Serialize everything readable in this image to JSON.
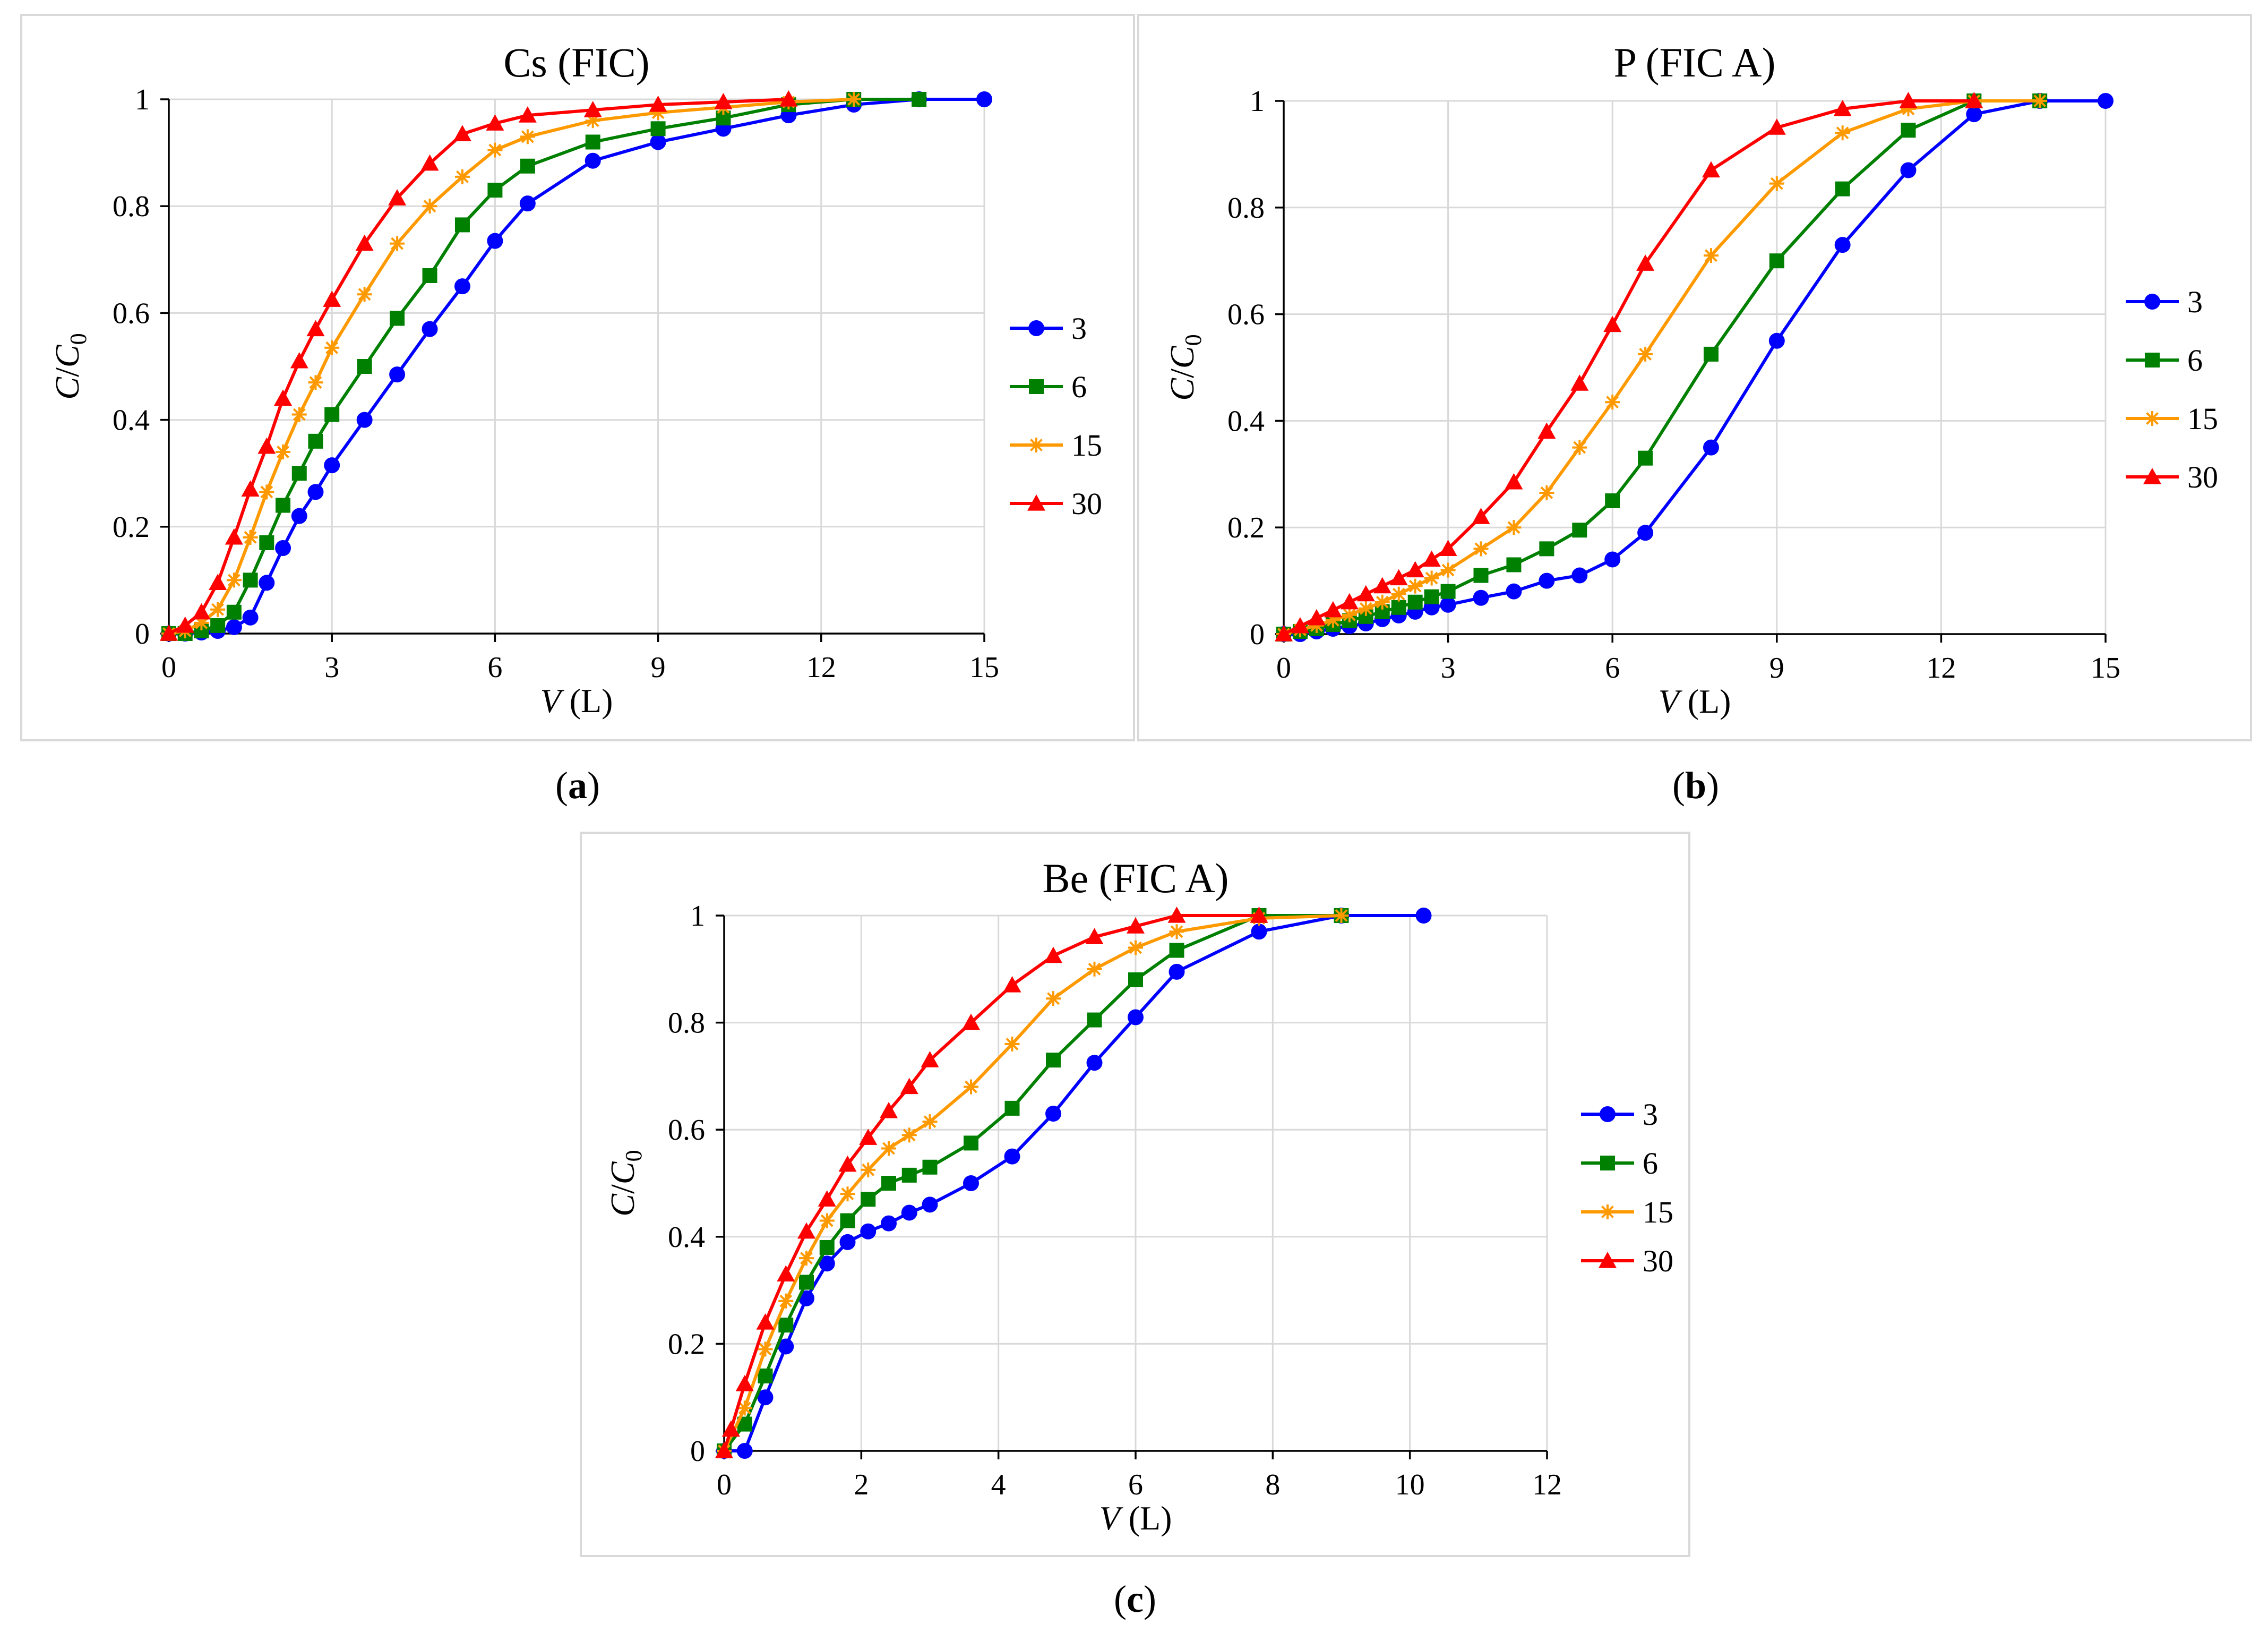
{
  "series_style": {
    "3": {
      "color": "#0000FF",
      "marker": "circle"
    },
    "6": {
      "color": "#008000",
      "marker": "square"
    },
    "15": {
      "color": "#FF9900",
      "marker": "star"
    },
    "30": {
      "color": "#FF0000",
      "marker": "triangle"
    }
  },
  "captions": [
    "a",
    "b",
    "c"
  ],
  "chart_data": [
    {
      "type": "line",
      "title": "Cs (FIC)",
      "xlabel_var": "V",
      "xlabel_unit": "(L)",
      "ylabel": "C/C0",
      "xlim": [
        0,
        15
      ],
      "ylim": [
        0,
        1
      ],
      "xticks": [
        0,
        3,
        6,
        9,
        12,
        15
      ],
      "yticks": [
        0,
        0.2,
        0.4,
        0.6,
        0.8,
        1
      ],
      "ytick_labels": [
        "0",
        "0.2",
        "0.4",
        "0.6",
        "0.8",
        "1"
      ],
      "legend": [
        "3",
        "6",
        "15",
        "30"
      ],
      "series": [
        {
          "name": "3",
          "x": [
            0,
            0.3,
            0.6,
            0.9,
            1.2,
            1.5,
            1.8,
            2.1,
            2.4,
            2.7,
            3.0,
            3.6,
            4.2,
            4.8,
            5.4,
            6.0,
            6.6,
            7.8,
            9.0,
            10.2,
            11.4,
            12.6,
            13.8,
            15.0
          ],
          "y": [
            0,
            0,
            0.002,
            0.005,
            0.012,
            0.03,
            0.095,
            0.16,
            0.22,
            0.265,
            0.315,
            0.4,
            0.485,
            0.57,
            0.65,
            0.735,
            0.805,
            0.885,
            0.92,
            0.945,
            0.97,
            0.99,
            1,
            1
          ]
        },
        {
          "name": "6",
          "x": [
            0,
            0.3,
            0.6,
            0.9,
            1.2,
            1.5,
            1.8,
            2.1,
            2.4,
            2.7,
            3.0,
            3.6,
            4.2,
            4.8,
            5.4,
            6.0,
            6.6,
            7.8,
            9.0,
            10.2,
            11.4,
            12.6,
            13.8
          ],
          "y": [
            0,
            0,
            0.005,
            0.015,
            0.04,
            0.1,
            0.17,
            0.24,
            0.3,
            0.36,
            0.41,
            0.5,
            0.59,
            0.67,
            0.765,
            0.83,
            0.875,
            0.92,
            0.945,
            0.965,
            0.99,
            1,
            1
          ]
        },
        {
          "name": "15",
          "x": [
            0,
            0.3,
            0.6,
            0.9,
            1.2,
            1.5,
            1.8,
            2.1,
            2.4,
            2.7,
            3.0,
            3.6,
            4.2,
            4.8,
            5.4,
            6.0,
            6.6,
            7.8,
            9.0,
            10.2,
            11.4,
            12.6
          ],
          "y": [
            0,
            0.005,
            0.02,
            0.045,
            0.1,
            0.18,
            0.265,
            0.34,
            0.41,
            0.47,
            0.535,
            0.635,
            0.73,
            0.8,
            0.855,
            0.905,
            0.93,
            0.96,
            0.975,
            0.985,
            0.995,
            1
          ]
        },
        {
          "name": "30",
          "x": [
            0,
            0.3,
            0.6,
            0.9,
            1.2,
            1.5,
            1.8,
            2.1,
            2.4,
            2.7,
            3.0,
            3.6,
            4.2,
            4.8,
            5.4,
            6.0,
            6.6,
            7.8,
            9.0,
            10.2,
            11.4
          ],
          "y": [
            0,
            0.015,
            0.04,
            0.095,
            0.18,
            0.27,
            0.35,
            0.44,
            0.51,
            0.57,
            0.625,
            0.73,
            0.815,
            0.88,
            0.935,
            0.955,
            0.97,
            0.98,
            0.99,
            0.995,
            1
          ]
        }
      ]
    },
    {
      "type": "line",
      "title": "P (FIC A)",
      "xlabel_var": "V",
      "xlabel_unit": "(L)",
      "ylabel": "C/C0",
      "xlim": [
        0,
        15
      ],
      "ylim": [
        0,
        1
      ],
      "xticks": [
        0,
        3,
        6,
        9,
        12,
        15
      ],
      "yticks": [
        0,
        0.2,
        0.4,
        0.6,
        0.8,
        1
      ],
      "ytick_labels": [
        "0",
        "0.2",
        "0.4",
        "0.6",
        "0.8",
        "1"
      ],
      "legend": [
        "3",
        "6",
        "15",
        "30"
      ],
      "series": [
        {
          "name": "3",
          "x": [
            0,
            0.3,
            0.6,
            0.9,
            1.2,
            1.5,
            1.8,
            2.1,
            2.4,
            2.7,
            3.0,
            3.6,
            4.2,
            4.8,
            5.4,
            6.0,
            6.6,
            7.8,
            9.0,
            10.2,
            11.4,
            12.6,
            13.8,
            15.0
          ],
          "y": [
            0,
            0,
            0.005,
            0.01,
            0.015,
            0.02,
            0.028,
            0.035,
            0.042,
            0.05,
            0.055,
            0.068,
            0.08,
            0.1,
            0.11,
            0.14,
            0.19,
            0.35,
            0.55,
            0.73,
            0.87,
            0.975,
            1,
            1
          ]
        },
        {
          "name": "6",
          "x": [
            0,
            0.3,
            0.6,
            0.9,
            1.2,
            1.5,
            1.8,
            2.1,
            2.4,
            2.7,
            3.0,
            3.6,
            4.2,
            4.8,
            5.4,
            6.0,
            6.6,
            7.8,
            9.0,
            10.2,
            11.4,
            12.6,
            13.8
          ],
          "y": [
            0,
            0.005,
            0.01,
            0.018,
            0.025,
            0.033,
            0.042,
            0.05,
            0.06,
            0.07,
            0.08,
            0.11,
            0.13,
            0.16,
            0.195,
            0.25,
            0.33,
            0.525,
            0.7,
            0.835,
            0.945,
            1,
            1
          ]
        },
        {
          "name": "15",
          "x": [
            0,
            0.3,
            0.6,
            0.9,
            1.2,
            1.5,
            1.8,
            2.1,
            2.4,
            2.7,
            3.0,
            3.6,
            4.2,
            4.8,
            5.4,
            6.0,
            6.6,
            7.8,
            9.0,
            10.2,
            11.4,
            12.6,
            13.8
          ],
          "y": [
            0,
            0.008,
            0.016,
            0.026,
            0.036,
            0.048,
            0.06,
            0.075,
            0.09,
            0.105,
            0.12,
            0.16,
            0.2,
            0.265,
            0.35,
            0.435,
            0.525,
            0.71,
            0.845,
            0.94,
            0.985,
            1,
            1
          ]
        },
        {
          "name": "30",
          "x": [
            0,
            0.3,
            0.6,
            0.9,
            1.2,
            1.5,
            1.8,
            2.1,
            2.4,
            2.7,
            3.0,
            3.6,
            4.2,
            4.8,
            5.4,
            6.0,
            6.6,
            7.8,
            9.0,
            10.2,
            11.4,
            12.6
          ],
          "y": [
            0,
            0.015,
            0.03,
            0.045,
            0.06,
            0.075,
            0.09,
            0.105,
            0.12,
            0.14,
            0.16,
            0.22,
            0.285,
            0.38,
            0.47,
            0.58,
            0.695,
            0.87,
            0.95,
            0.985,
            1,
            1
          ]
        }
      ]
    },
    {
      "type": "line",
      "title": "Be (FIC A)",
      "xlabel_var": "V",
      "xlabel_unit": "(L)",
      "ylabel": "C/C0",
      "xlim": [
        0,
        12
      ],
      "ylim": [
        0,
        1
      ],
      "xticks": [
        0,
        2,
        4,
        6,
        8,
        10,
        12
      ],
      "yticks": [
        0,
        0.2,
        0.4,
        0.6,
        0.8,
        1
      ],
      "ytick_labels": [
        "0",
        "0.2",
        "0.4",
        "0.6",
        "0.8",
        "1"
      ],
      "legend": [
        "3",
        "6",
        "15",
        "30"
      ],
      "series": [
        {
          "name": "3",
          "x": [
            0,
            0.3,
            0.6,
            0.9,
            1.2,
            1.5,
            1.8,
            2.1,
            2.4,
            2.7,
            3.0,
            3.6,
            4.2,
            4.8,
            5.4,
            6.0,
            6.6,
            7.8,
            9.0,
            10.2
          ],
          "y": [
            0,
            0,
            0.1,
            0.195,
            0.285,
            0.35,
            0.39,
            0.41,
            0.425,
            0.445,
            0.46,
            0.5,
            0.55,
            0.63,
            0.725,
            0.81,
            0.895,
            0.97,
            1,
            1
          ]
        },
        {
          "name": "6",
          "x": [
            0,
            0.3,
            0.6,
            0.9,
            1.2,
            1.5,
            1.8,
            2.1,
            2.4,
            2.7,
            3.0,
            3.6,
            4.2,
            4.8,
            5.4,
            6.0,
            6.6,
            7.8,
            9.0
          ],
          "y": [
            0,
            0.05,
            0.14,
            0.235,
            0.315,
            0.38,
            0.43,
            0.47,
            0.5,
            0.515,
            0.53,
            0.575,
            0.64,
            0.73,
            0.805,
            0.88,
            0.935,
            1,
            1
          ]
        },
        {
          "name": "15",
          "x": [
            0,
            0.3,
            0.6,
            0.9,
            1.2,
            1.5,
            1.8,
            2.1,
            2.4,
            2.7,
            3.0,
            3.6,
            4.2,
            4.8,
            5.4,
            6.0,
            6.6,
            7.8,
            9.0
          ],
          "y": [
            0,
            0.08,
            0.19,
            0.28,
            0.36,
            0.43,
            0.48,
            0.525,
            0.565,
            0.59,
            0.615,
            0.68,
            0.76,
            0.845,
            0.9,
            0.94,
            0.97,
            0.995,
            1
          ]
        },
        {
          "name": "30",
          "x": [
            0,
            0.1,
            0.3,
            0.6,
            0.9,
            1.2,
            1.5,
            1.8,
            2.1,
            2.4,
            2.7,
            3.0,
            3.6,
            4.2,
            4.8,
            5.4,
            6.0,
            6.6,
            7.8
          ],
          "y": [
            0,
            0.04,
            0.125,
            0.24,
            0.33,
            0.41,
            0.47,
            0.535,
            0.585,
            0.635,
            0.68,
            0.73,
            0.8,
            0.87,
            0.925,
            0.96,
            0.98,
            1,
            1
          ]
        }
      ]
    }
  ]
}
